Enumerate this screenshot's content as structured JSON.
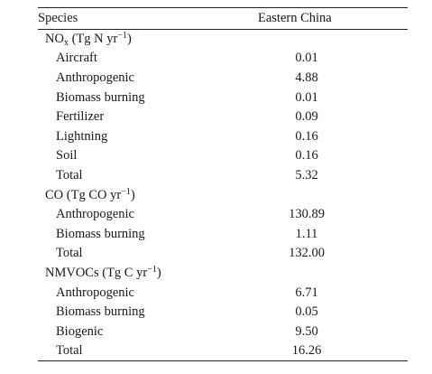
{
  "table": {
    "header": {
      "species": "Species",
      "region": "Eastern China"
    },
    "groups": [
      {
        "label": "NO",
        "label_sub": "x",
        "unit_pre": "(Tg N yr",
        "unit_sup": "−1",
        "unit_post": ")",
        "rows": [
          {
            "name": "Aircraft",
            "value": "0.01"
          },
          {
            "name": "Anthropogenic",
            "value": "4.88"
          },
          {
            "name": "Biomass burning",
            "value": "0.01"
          },
          {
            "name": "Fertilizer",
            "value": "0.09"
          },
          {
            "name": "Lightning",
            "value": "0.16"
          },
          {
            "name": "Soil",
            "value": "0.16"
          },
          {
            "name": "Total",
            "value": "5.32"
          }
        ]
      },
      {
        "label": "CO",
        "label_sub": "",
        "unit_pre": "(Tg CO yr",
        "unit_sup": "−1",
        "unit_post": ")",
        "rows": [
          {
            "name": "Anthropogenic",
            "value": "130.89"
          },
          {
            "name": "Biomass burning",
            "value": "1.11"
          },
          {
            "name": "Total",
            "value": "132.00"
          }
        ]
      },
      {
        "label": "NMVOCs",
        "label_sub": "",
        "unit_pre": "(Tg C yr",
        "unit_sup": "−1",
        "unit_post": ")",
        "rows": [
          {
            "name": "Anthropogenic",
            "value": "6.71"
          },
          {
            "name": "Biomass burning",
            "value": "0.05"
          },
          {
            "name": "Biogenic",
            "value": "9.50"
          },
          {
            "name": "Total",
            "value": "16.26"
          }
        ]
      }
    ]
  }
}
